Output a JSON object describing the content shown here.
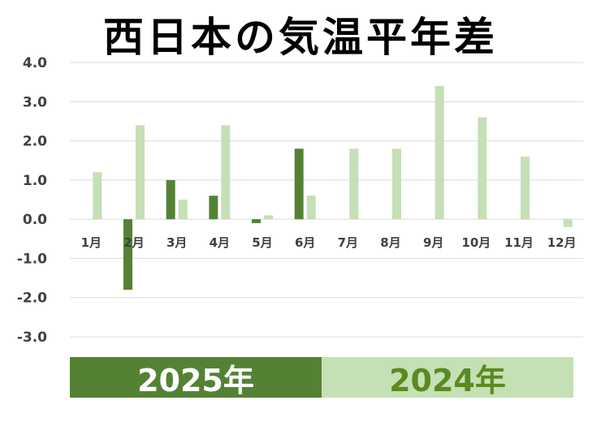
{
  "colors": {
    "series_2025": "#548235",
    "series_2024": "#c5e0b4",
    "grid": "#d9d9d9",
    "axis_text": "#404040"
  },
  "chart_data": {
    "type": "bar",
    "title": "西日本の気温平年差",
    "categories": [
      "1月",
      "2月",
      "3月",
      "4月",
      "5月",
      "6月",
      "7月",
      "8月",
      "9月",
      "10月",
      "11月",
      "12月"
    ],
    "ylim": [
      -3.0,
      4.0
    ],
    "yticks": [
      "4.0",
      "3.0",
      "2.0",
      "1.0",
      "0.0",
      "-1.0",
      "-2.0",
      "-3.0"
    ],
    "grid": true,
    "legend_position": "bottom",
    "series": [
      {
        "name": "2025年",
        "values": [
          null,
          -1.8,
          1.0,
          0.6,
          -0.1,
          1.8,
          null,
          null,
          null,
          null,
          null,
          null
        ]
      },
      {
        "name": "2024年",
        "values": [
          1.2,
          2.4,
          0.5,
          2.4,
          0.1,
          0.6,
          1.8,
          1.8,
          3.4,
          2.6,
          1.6,
          -0.2
        ]
      }
    ]
  }
}
